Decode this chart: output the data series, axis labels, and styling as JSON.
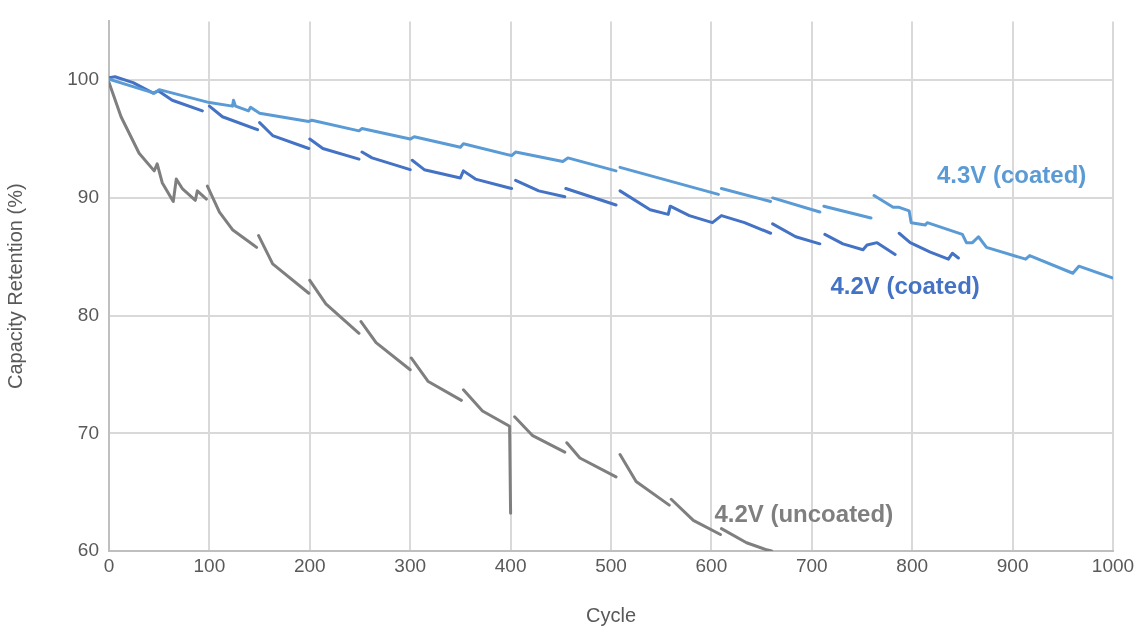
{
  "chart_data": {
    "type": "line",
    "xlabel": "Cycle",
    "ylabel": "Capacity Retention (%)",
    "xlim": [
      0,
      1000
    ],
    "xticks": [
      0,
      100,
      200,
      300,
      400,
      500,
      600,
      700,
      800,
      900,
      1000
    ],
    "ylim": [
      60,
      105
    ],
    "yticks": [
      60,
      70,
      80,
      90,
      100
    ],
    "grid": true,
    "legend": false,
    "marker": "none",
    "line_style": "solid",
    "series": [
      {
        "name": "4.3V (coated)",
        "color": "#5b9bd5",
        "x": [
          0,
          45,
          50,
          100,
          123,
          124,
          126,
          139,
          141,
          150,
          199,
          202,
          249,
          252,
          300,
          304,
          350,
          353,
          401,
          405,
          452,
          457,
          505,
          507,
          509,
          607,
          608,
          610,
          659,
          660,
          661,
          708,
          710,
          712,
          759,
          760,
          762,
          781,
          787,
          797,
          799,
          813,
          815,
          850,
          854,
          860,
          866,
          874,
          913,
          917,
          960,
          966,
          1000
        ],
        "values": [
          100.1,
          98.9,
          99.2,
          98.1,
          97.8,
          98.3,
          97.8,
          97.4,
          97.7,
          97.2,
          96.5,
          96.6,
          95.7,
          95.9,
          95.0,
          95.2,
          94.3,
          94.6,
          93.6,
          93.9,
          93.1,
          93.4,
          92.3,
          null,
          92.6,
          90.3,
          null,
          90.8,
          89.7,
          null,
          90.0,
          88.8,
          null,
          89.3,
          88.3,
          null,
          90.2,
          89.2,
          89.2,
          88.9,
          87.9,
          87.7,
          87.9,
          86.9,
          86.2,
          86.2,
          86.7,
          85.8,
          84.8,
          85.1,
          83.6,
          84.2,
          83.2
        ]
      },
      {
        "name": "4.2V (coated)",
        "color": "#4472c4",
        "x": [
          0,
          6,
          24,
          44,
          49,
          63,
          93,
          96,
          100,
          113,
          148,
          149,
          150,
          163,
          199,
          199.5,
          200,
          213,
          249,
          250,
          252,
          262,
          300,
          301,
          302,
          314,
          350,
          353,
          365,
          401,
          403,
          405,
          428,
          454,
          454.5,
          455,
          505,
          506,
          509,
          539,
          557,
          559,
          578,
          601,
          610,
          633,
          659,
          660,
          661,
          684,
          708,
          710,
          713,
          731,
          751,
          755,
          765,
          783,
          785,
          787,
          798,
          818,
          836,
          840,
          846
        ],
        "values": [
          100.2,
          100.3,
          99.8,
          98.9,
          99.1,
          98.3,
          97.4,
          null,
          97.8,
          96.9,
          95.8,
          null,
          96.4,
          95.3,
          94.2,
          null,
          95.0,
          94.2,
          93.3,
          null,
          93.9,
          93.4,
          92.4,
          null,
          93.2,
          92.4,
          91.7,
          92.3,
          91.6,
          90.8,
          null,
          91.5,
          90.6,
          90.1,
          null,
          90.8,
          89.4,
          null,
          90.6,
          89.0,
          88.6,
          89.3,
          88.5,
          87.9,
          88.5,
          87.9,
          87.0,
          null,
          87.8,
          86.7,
          86.1,
          null,
          86.9,
          86.1,
          85.6,
          86.0,
          86.2,
          85.2,
          null,
          87.0,
          86.2,
          85.4,
          84.8,
          85.3,
          84.9
        ]
      },
      {
        "name": "4.2V (uncoated)",
        "color": "#7f7f7f",
        "x": [
          0,
          12,
          30,
          45,
          48,
          53,
          64,
          67,
          73,
          86,
          88,
          97,
          97.5,
          98,
          110,
          123,
          147,
          148,
          149,
          163,
          199,
          199.5,
          200,
          216,
          249,
          250,
          251,
          266,
          300,
          300.5,
          301,
          318,
          351,
          352,
          353,
          372,
          399,
          400,
          402,
          404,
          422,
          454,
          455,
          456,
          469,
          505,
          507,
          509,
          525,
          558,
          559,
          560,
          582,
          609,
          609.5,
          610,
          635,
          655,
          660
        ],
        "values": [
          99.8,
          96.9,
          93.8,
          92.3,
          92.9,
          91.3,
          89.7,
          91.6,
          90.8,
          89.8,
          90.6,
          89.9,
          null,
          91.0,
          88.8,
          87.3,
          85.8,
          null,
          86.8,
          84.4,
          81.9,
          null,
          83.0,
          81.0,
          78.5,
          null,
          79.5,
          77.7,
          75.4,
          null,
          76.4,
          74.4,
          72.8,
          null,
          73.7,
          71.9,
          70.6,
          63.2,
          null,
          71.4,
          69.8,
          68.4,
          null,
          69.2,
          67.9,
          66.3,
          null,
          68.2,
          65.9,
          63.9,
          null,
          64.4,
          62.6,
          61.4,
          null,
          61.9,
          60.7,
          60.1,
          60.0
        ]
      }
    ]
  }
}
